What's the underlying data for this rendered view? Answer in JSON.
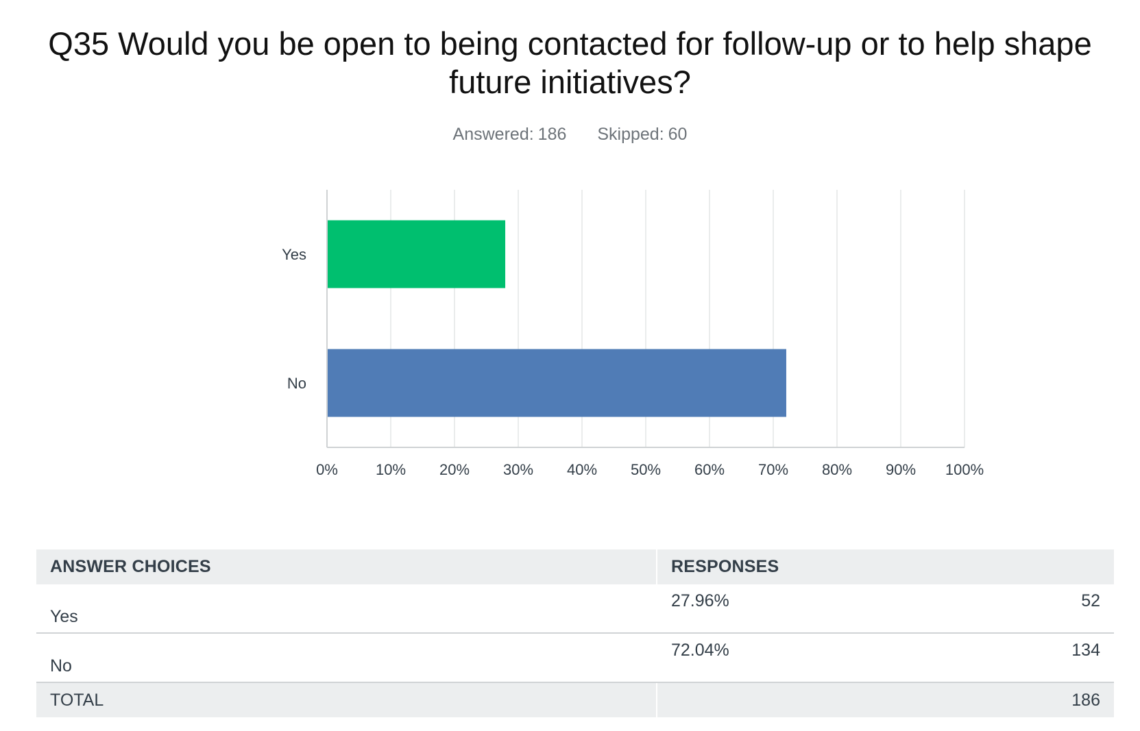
{
  "question": {
    "title": "Q35 Would you be open to being contacted for follow-up or to help shape future initiatives?",
    "answered_label": "Answered:",
    "answered_value": "186",
    "skipped_label": "Skipped:",
    "skipped_value": "60"
  },
  "chart_data": {
    "type": "bar",
    "orientation": "horizontal",
    "categories": [
      "Yes",
      "No"
    ],
    "values": [
      27.96,
      72.04
    ],
    "colors": [
      "#00bf6f",
      "#507cb6"
    ],
    "xlim": [
      0,
      100
    ],
    "xticks": [
      "0%",
      "10%",
      "20%",
      "30%",
      "40%",
      "50%",
      "60%",
      "70%",
      "80%",
      "90%",
      "100%"
    ],
    "grid": true,
    "title": "",
    "xlabel": "",
    "ylabel": ""
  },
  "table": {
    "headers": [
      "ANSWER CHOICES",
      "RESPONSES"
    ],
    "rows": [
      {
        "choice": "Yes",
        "percent": "27.96%",
        "count": "52"
      },
      {
        "choice": "No",
        "percent": "72.04%",
        "count": "134"
      }
    ],
    "total_label": "TOTAL",
    "total_count": "186"
  }
}
